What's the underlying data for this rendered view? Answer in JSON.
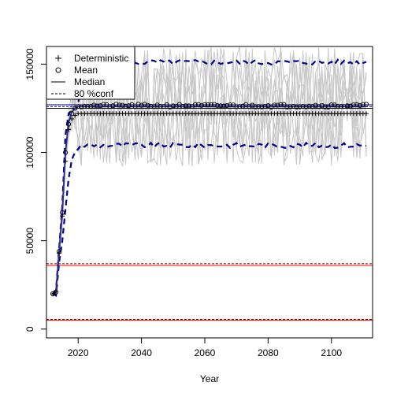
{
  "chart_data": {
    "type": "line",
    "title": "",
    "xlabel": "Year",
    "ylabel": "",
    "xlim": [
      2010,
      2113
    ],
    "ylim": [
      -5000,
      160000
    ],
    "x_ticks": [
      2020,
      2040,
      2060,
      2080,
      2100
    ],
    "y_ticks": [
      0,
      50000,
      100000,
      150000
    ],
    "grid": false,
    "legend": {
      "position": "top-left",
      "entries": [
        {
          "label": "Deterministic",
          "symbol": "plus"
        },
        {
          "label": "Mean",
          "symbol": "circle"
        },
        {
          "label": "Median",
          "symbol": "solid-line"
        },
        {
          "label": "80 %conf",
          "symbol": "dashed-line"
        }
      ]
    },
    "ramp": {
      "x": [
        2012,
        2013,
        2014,
        2015,
        2016,
        2017,
        2018,
        2019,
        2020
      ],
      "median": [
        20000,
        21000,
        44000,
        66000,
        100000,
        117000,
        123000,
        125000,
        126000
      ],
      "mean": [
        20000,
        21000,
        44000,
        66000,
        100000,
        116000,
        122000,
        125000,
        126000
      ],
      "deterministic": [
        20000,
        21000,
        43000,
        64000,
        95000,
        113000,
        119000,
        121000,
        122000
      ],
      "upper_80": [
        20000,
        22000,
        46000,
        70000,
        110000,
        122000,
        124000,
        125000,
        126000
      ],
      "lower_80": [
        20000,
        19000,
        38000,
        50000,
        68000,
        85000,
        96000,
        100000,
        102000
      ]
    },
    "plateau": {
      "x_start": 2020,
      "x_end": 2111,
      "median": 126000,
      "mean": 126500,
      "deterministic": 122000,
      "upper_80_mean": 151000,
      "lower_80_mean": 104000
    },
    "horizontal_lines": [
      {
        "y": 126000,
        "color": "#00008B",
        "style": "dashed"
      },
      {
        "y": 127000,
        "color": "#00008B",
        "style": "solid"
      },
      {
        "y": 125000,
        "color": "#000000",
        "style": "solid"
      },
      {
        "y": 37000,
        "color": "#8B0000",
        "style": "dashed"
      },
      {
        "y": 36000,
        "color": "#FF0000",
        "style": "solid"
      },
      {
        "y": 5500,
        "color": "#8B0000",
        "style": "dashed"
      },
      {
        "y": 5000,
        "color": "#FF0000",
        "style": "solid"
      }
    ],
    "trajectory_count": 8,
    "trajectory_range": [
      92000,
      160000
    ],
    "colors": {
      "trajectory": "#c8c8c8",
      "median": "#2f2f8f",
      "mean_marker": "#000000",
      "confidence": "#00008B",
      "deterministic": "#000000"
    }
  }
}
